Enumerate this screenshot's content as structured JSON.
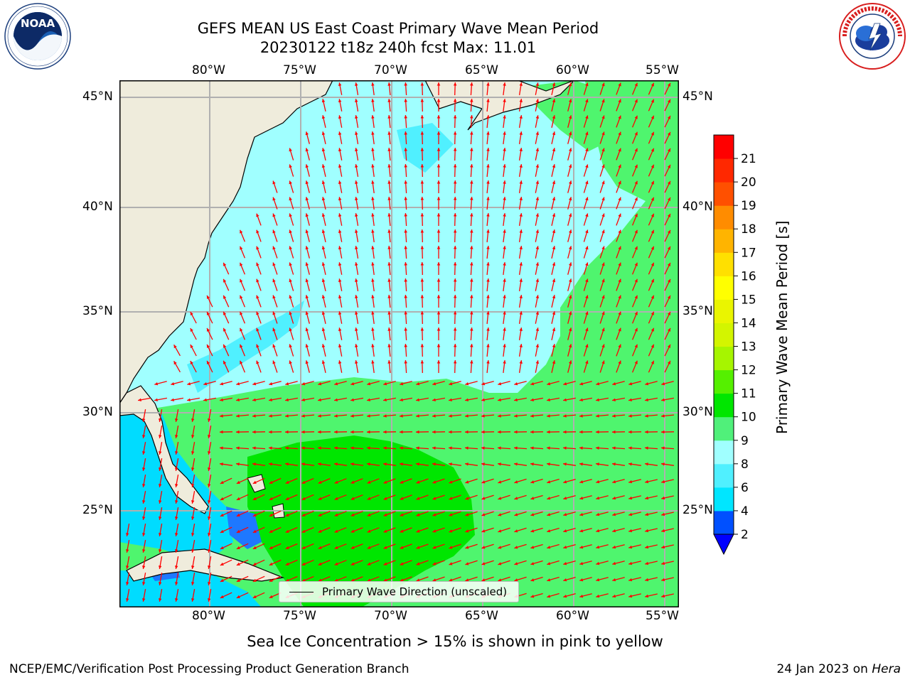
{
  "header": {
    "title_line1": "GEFS MEAN US East Coast Primary Wave Mean Period",
    "title_line2": "20230122 t18z 240h fcst   Max: 11.01"
  },
  "logos": {
    "left": {
      "text": "NOAA",
      "ring_text": "NATIONAL OCEANIC AND ATMOSPHERIC ADMINISTRATION · U.S. DEPARTMENT OF COMMERCE"
    },
    "right": {
      "ring_text": "NATIONAL WEATHER SERVICE"
    }
  },
  "map": {
    "lon_labels": [
      "80°W",
      "75°W",
      "70°W",
      "65°W",
      "60°W",
      "55°W"
    ],
    "lat_labels": [
      "45°N",
      "40°N",
      "35°N",
      "30°N",
      "25°N"
    ],
    "legend_text": "Primary Wave Direction (unscaled)",
    "colors": {
      "land": "#efecdc",
      "period_lt4": "#00dcff",
      "period_6_8": "#50f0ff",
      "period_8_9": "#a0ffff",
      "period_9_10": "#4ff56e",
      "period_10_11": "#00e600",
      "period_2_4": "#1e78ff",
      "arrows": "#ff0000",
      "grid": "#b0b0b0"
    }
  },
  "colorbar": {
    "label": "Primary Wave Mean Period [s]",
    "ticks": [
      "2",
      "4",
      "6",
      "8",
      "9",
      "10",
      "11",
      "12",
      "13",
      "14",
      "15",
      "16",
      "17",
      "18",
      "19",
      "20",
      "21"
    ],
    "colors": [
      "#0050ff",
      "#00e6ff",
      "#50f0ff",
      "#a0ffff",
      "#50f07a",
      "#00e600",
      "#55f000",
      "#a6f500",
      "#d3f500",
      "#eaf500",
      "#ffff00",
      "#ffe000",
      "#ffb400",
      "#ff8c00",
      "#ff5000",
      "#ff2800",
      "#ff0000"
    ],
    "underflow_color": "#0000ff"
  },
  "notes": {
    "sea_ice": "Sea Ice Concentration > 15% is shown in pink to yellow",
    "footer_left": "NCEP/EMC/Verification Post Processing Product Generation Branch",
    "footer_right_date": "24 Jan 2023 on ",
    "footer_right_machine": "Hera"
  }
}
